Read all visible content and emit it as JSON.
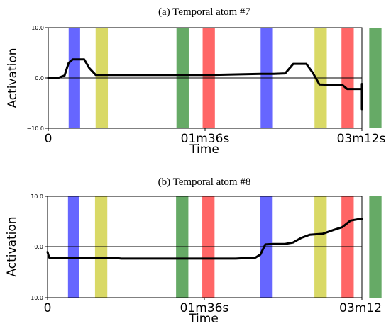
{
  "chart_data": [
    {
      "type": "line",
      "title": "(a) Temporal atom #7",
      "xlabel": "Time",
      "ylabel": "Activation",
      "ylim": [
        -10,
        10
      ],
      "xlim": [
        0,
        192
      ],
      "x_ticks": [
        {
          "value": 0,
          "label": "0"
        },
        {
          "value": 96,
          "label": "01m36s"
        },
        {
          "value": 192,
          "label": "03m12s"
        }
      ],
      "y_ticks": [
        {
          "value": 10,
          "label": "10.0"
        },
        {
          "value": 0,
          "label": "0.0"
        },
        {
          "value": -10,
          "label": "−10.0"
        }
      ],
      "bands": [
        {
          "start": 12.5,
          "end": 19.5,
          "color": "#6666ff"
        },
        {
          "start": 29,
          "end": 36.5,
          "color": "#d9d966"
        },
        {
          "start": 78.5,
          "end": 86,
          "color": "#66aa66"
        },
        {
          "start": 94.5,
          "end": 102,
          "color": "#ff6666"
        },
        {
          "start": 130,
          "end": 137.5,
          "color": "#6666ff"
        },
        {
          "start": 163,
          "end": 170.5,
          "color": "#d9d966"
        },
        {
          "start": 179.5,
          "end": 187,
          "color": "#ff6666"
        },
        {
          "start": 196.5,
          "end": 204,
          "color": "#66aa66"
        }
      ],
      "series": [
        {
          "color": "#000000",
          "x": [
            0,
            6,
            10,
            12.5,
            15,
            20,
            22,
            25,
            29,
            35,
            60,
            100,
            130,
            138,
            145,
            150,
            154,
            158,
            162,
            166,
            174,
            180,
            183,
            188,
            192,
            195,
            200,
            203,
            208,
            212,
            214
          ],
          "y": [
            0,
            0,
            0.5,
            3,
            3.7,
            3.7,
            3.7,
            2,
            0.6,
            0.6,
            0.6,
            0.6,
            0.8,
            0.8,
            0.9,
            2.8,
            2.8,
            2.8,
            1.0,
            -1.3,
            -1.4,
            -1.4,
            -2.2,
            -2.2,
            -2.2,
            -1.2,
            -1.2,
            -1.2,
            -4.4,
            -4.4,
            -6.2
          ]
        }
      ]
    },
    {
      "type": "line",
      "title": "(b) Temporal atom #8",
      "xlabel": "Time",
      "ylabel": "Activation",
      "ylim": [
        -10,
        10
      ],
      "xlim": [
        0,
        192
      ],
      "x_ticks": [
        {
          "value": 0,
          "label": "0"
        },
        {
          "value": 96,
          "label": "01m36s"
        },
        {
          "value": 192,
          "label": "03m12"
        }
      ],
      "y_ticks": [
        {
          "value": 10,
          "label": "10.0"
        },
        {
          "value": 0,
          "label": "0.0"
        },
        {
          "value": -10,
          "label": "−10.0"
        }
      ],
      "bands": [
        {
          "start": 12.5,
          "end": 19.5,
          "color": "#6666ff"
        },
        {
          "start": 29,
          "end": 36.5,
          "color": "#d9d966"
        },
        {
          "start": 78.5,
          "end": 86,
          "color": "#66aa66"
        },
        {
          "start": 94.5,
          "end": 102,
          "color": "#ff6666"
        },
        {
          "start": 130,
          "end": 137.5,
          "color": "#6666ff"
        },
        {
          "start": 163,
          "end": 170.5,
          "color": "#d9d966"
        },
        {
          "start": 179.5,
          "end": 187,
          "color": "#ff6666"
        },
        {
          "start": 196.5,
          "end": 204,
          "color": "#66aa66"
        }
      ],
      "series": [
        {
          "color": "#000000",
          "x": [
            0,
            1,
            5,
            20,
            30,
            40,
            45,
            60,
            100,
            115,
            120,
            127,
            130,
            133,
            138,
            145,
            150,
            155,
            160,
            168,
            175,
            180,
            185,
            190,
            200,
            214
          ],
          "y": [
            -1,
            -2.1,
            -2.1,
            -2.1,
            -2.1,
            -2.1,
            -2.3,
            -2.3,
            -2.3,
            -2.3,
            -2.2,
            -2.1,
            -1.5,
            0.5,
            0.6,
            0.6,
            0.9,
            1.8,
            2.4,
            2.6,
            3.4,
            3.9,
            5.2,
            5.5,
            5.5,
            5.5
          ]
        }
      ]
    }
  ]
}
